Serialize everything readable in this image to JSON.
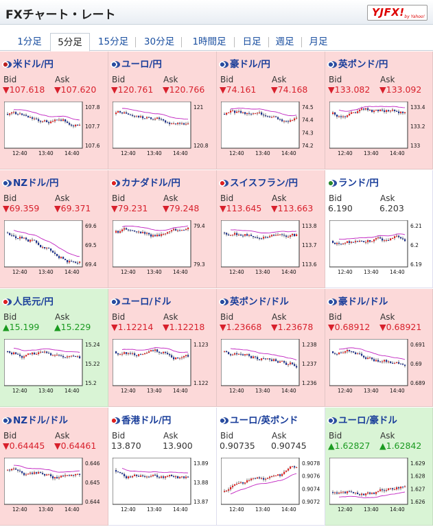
{
  "header": {
    "title": "FXチャート・レート",
    "logo": "YJFX!",
    "logo_sub": "by Yahoo!"
  },
  "tabs": [
    {
      "label": "1分足",
      "active": false
    },
    {
      "label": "5分足",
      "active": true
    },
    {
      "label": "15分足",
      "active": false
    },
    {
      "label": "30分足",
      "active": false
    },
    {
      "label": "1時間足",
      "active": false
    },
    {
      "label": "日足",
      "active": false
    },
    {
      "label": "週足",
      "active": false
    },
    {
      "label": "月足",
      "active": false
    }
  ],
  "labels": {
    "bid": "Bid",
    "ask": "Ask"
  },
  "x_ticks": [
    "12:40",
    "13:40",
    "14:40"
  ],
  "pairs": [
    {
      "name": "米ドル/円",
      "dir": "down",
      "bid": "▼107.618",
      "ask": "▼107.620",
      "yticks": [
        "107.8",
        "107.7",
        "107.6"
      ],
      "trend": "down",
      "flag_color": "#b22"
    },
    {
      "name": "ユーロ/円",
      "dir": "down",
      "bid": "▼120.761",
      "ask": "▼120.766",
      "yticks": [
        "121",
        "120.8"
      ],
      "trend": "down",
      "flag_color": "#2a4da0"
    },
    {
      "name": "豪ドル/円",
      "dir": "down",
      "bid": "▼74.161",
      "ask": "▼74.168",
      "yticks": [
        "74.5",
        "74.4",
        "74.3",
        "74.2"
      ],
      "trend": "down",
      "flag_color": "#2a4da0"
    },
    {
      "name": "英ポンド/円",
      "dir": "down",
      "bid": "▼133.082",
      "ask": "▼133.092",
      "yticks": [
        "133.4",
        "133.2",
        "133"
      ],
      "trend": "down",
      "flag_color": "#2a4da0"
    },
    {
      "name": "NZドル/円",
      "dir": "down",
      "bid": "▼69.359",
      "ask": "▼69.371",
      "yticks": [
        "69.6",
        "69.5",
        "69.4"
      ],
      "trend": "down",
      "flag_color": "#2a4da0"
    },
    {
      "name": "カナダドル/円",
      "dir": "down",
      "bid": "▼79.231",
      "ask": "▼79.248",
      "yticks": [
        "79.4",
        "79.3"
      ],
      "trend": "down",
      "flag_color": "#d22"
    },
    {
      "name": "スイスフラン/円",
      "dir": "down",
      "bid": "▼113.645",
      "ask": "▼113.663",
      "yticks": [
        "113.8",
        "113.7",
        "113.6"
      ],
      "trend": "down",
      "flag_color": "#d22"
    },
    {
      "name": "ランド/円",
      "dir": "flat",
      "bid": "6.190",
      "ask": "6.203",
      "yticks": [
        "6.21",
        "6.2",
        "6.19"
      ],
      "trend": "flat",
      "flag_color": "#2a8a30"
    },
    {
      "name": "人民元/円",
      "dir": "up",
      "bid": "▲15.199",
      "ask": "▲15.229",
      "yticks": [
        "15.24",
        "15.22",
        "15.2"
      ],
      "trend": "down",
      "flag_color": "#d22"
    },
    {
      "name": "ユーロ/ドル",
      "dir": "down",
      "bid": "▼1.12214",
      "ask": "▼1.12218",
      "yticks": [
        "1.123",
        "1.122"
      ],
      "trend": "down",
      "flag_color": "#2a4da0"
    },
    {
      "name": "英ポンド/ドル",
      "dir": "down",
      "bid": "▼1.23668",
      "ask": "▼1.23678",
      "yticks": [
        "1.238",
        "1.237",
        "1.236"
      ],
      "trend": "down",
      "flag_color": "#2a4da0"
    },
    {
      "name": "豪ドル/ドル",
      "dir": "down",
      "bid": "▼0.68912",
      "ask": "▼0.68921",
      "yticks": [
        "0.691",
        "0.69",
        "0.689"
      ],
      "trend": "down",
      "flag_color": "#2a4da0"
    },
    {
      "name": "NZドル/ドル",
      "dir": "down",
      "bid": "▼0.64445",
      "ask": "▼0.64461",
      "yticks": [
        "0.646",
        "0.645",
        "0.644"
      ],
      "trend": "down",
      "flag_color": "#2a4da0"
    },
    {
      "name": "香港ドル/円",
      "dir": "flat",
      "bid": "13.870",
      "ask": "13.900",
      "yticks": [
        "13.89",
        "13.88",
        "13.87"
      ],
      "trend": "down",
      "flag_color": "#d22"
    },
    {
      "name": "ユーロ/英ポンド",
      "dir": "flat",
      "bid": "0.90735",
      "ask": "0.90745",
      "yticks": [
        "0.9078",
        "0.9076",
        "0.9074",
        "0.9072"
      ],
      "trend": "up",
      "flag_color": "#2a4da0"
    },
    {
      "name": "ユーロ/豪ドル",
      "dir": "up",
      "bid": "▲1.62827",
      "ask": "▲1.62842",
      "yticks": [
        "1.629",
        "1.628",
        "1.627",
        "1.626"
      ],
      "trend": "up",
      "flag_color": "#2a4da0"
    }
  ]
}
